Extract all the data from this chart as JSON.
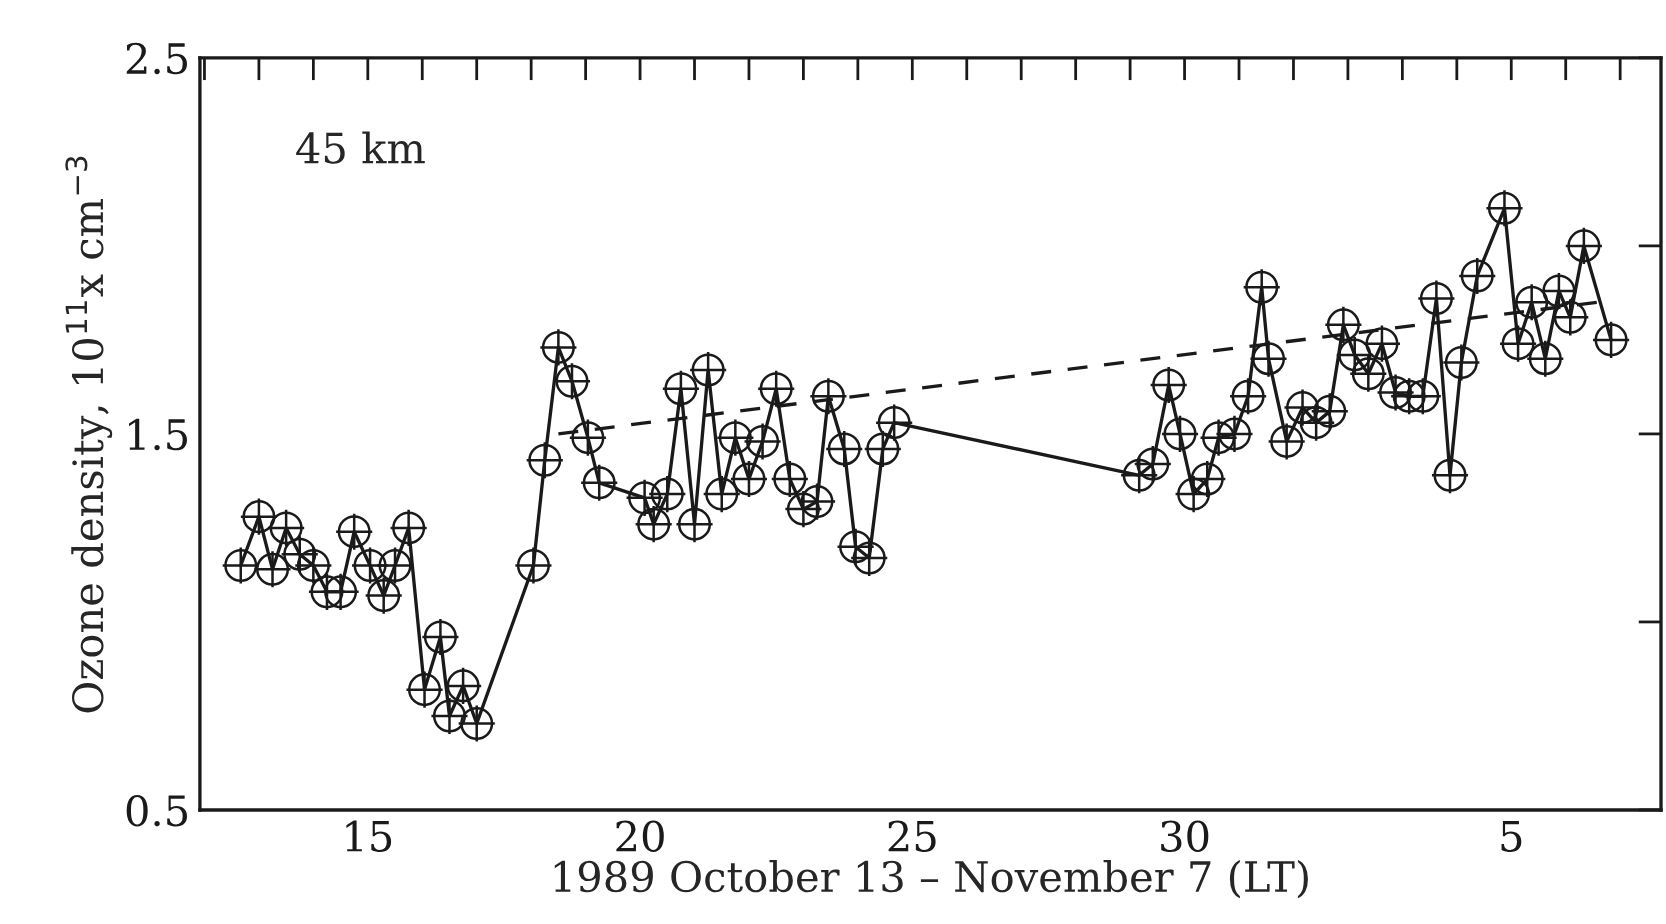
{
  "chart_data": {
    "type": "line",
    "xlabel": "1989 October 13 – November 7 (LT)",
    "ylabel": "Ozone density, 10$^{11}$x cm$^{−3}$",
    "annotations": [
      "45 km"
    ],
    "xlim": [
      "1989-10-11T22:00",
      "1989-11-07T18:00"
    ],
    "ylim": [
      0.5,
      2.5
    ],
    "xticks": [
      {
        "value": "1989-10-12",
        "label": null
      },
      {
        "value": "1989-10-13",
        "label": null
      },
      {
        "value": "1989-10-14",
        "label": null
      },
      {
        "value": "1989-10-15",
        "label": "15"
      },
      {
        "value": "1989-10-16",
        "label": null
      },
      {
        "value": "1989-10-17",
        "label": null
      },
      {
        "value": "1989-10-18",
        "label": null
      },
      {
        "value": "1989-10-19",
        "label": null
      },
      {
        "value": "1989-10-20",
        "label": "20"
      },
      {
        "value": "1989-10-21",
        "label": null
      },
      {
        "value": "1989-10-22",
        "label": null
      },
      {
        "value": "1989-10-23",
        "label": null
      },
      {
        "value": "1989-10-24",
        "label": null
      },
      {
        "value": "1989-10-25",
        "label": "25"
      },
      {
        "value": "1989-10-26",
        "label": null
      },
      {
        "value": "1989-10-27",
        "label": null
      },
      {
        "value": "1989-10-28",
        "label": null
      },
      {
        "value": "1989-10-29",
        "label": null
      },
      {
        "value": "1989-10-30",
        "label": "30"
      },
      {
        "value": "1989-10-31",
        "label": null
      },
      {
        "value": "1989-11-01",
        "label": null
      },
      {
        "value": "1989-11-02",
        "label": null
      },
      {
        "value": "1989-11-03",
        "label": null
      },
      {
        "value": "1989-11-04",
        "label": null
      },
      {
        "value": "1989-11-05",
        "label": "5"
      },
      {
        "value": "1989-11-06",
        "label": null
      },
      {
        "value": "1989-11-07",
        "label": null
      }
    ],
    "yticks": [
      0.5,
      {
        "value": 1.0,
        "label": null
      },
      1.5,
      {
        "value": 2.0,
        "label": null
      },
      2.5
    ],
    "grid": false,
    "legend": false,
    "series": [
      {
        "color": "#1a1a1a",
        "marker": "circle",
        "line_style": "solid",
        "x": [
          "1989-10-12T16:00",
          "1989-10-13T00:00",
          "1989-10-13T06:00",
          "1989-10-13T12:00",
          "1989-10-13T18:00",
          "1989-10-14T00:00",
          "1989-10-14T06:00",
          "1989-10-14T12:00",
          "1989-10-14T18:00",
          "1989-10-15T01:00",
          "1989-10-15T07:00",
          "1989-10-15T12:00",
          "1989-10-15T18:00",
          "1989-10-16T01:00",
          "1989-10-16T08:00",
          "1989-10-16T12:00",
          "1989-10-16T18:00",
          "1989-10-17T00:00",
          "1989-10-18T01:00",
          "1989-10-18T06:00",
          "1989-10-18T12:00",
          "1989-10-18T18:00",
          "1989-10-19T01:00",
          "1989-10-19T06:00",
          "1989-10-20T02:00",
          "1989-10-20T06:00",
          "1989-10-20T12:00",
          "1989-10-20T18:00",
          "1989-10-21T00:00",
          "1989-10-21T06:00",
          "1989-10-21T12:00",
          "1989-10-21T18:00",
          "1989-10-22T00:00",
          "1989-10-22T06:00",
          "1989-10-22T12:00",
          "1989-10-22T18:00",
          "1989-10-23T00:00",
          "1989-10-23T06:00",
          "1989-10-23T11:00",
          "1989-10-23T18:00",
          "1989-10-23T23:00",
          "1989-10-24T05:00",
          "1989-10-24T11:00",
          "1989-10-24T16:00",
          "1989-10-29T04:00",
          "1989-10-29T10:00",
          "1989-10-29T17:00",
          "1989-10-29T22:00",
          "1989-10-30T04:00",
          "1989-10-30T10:00",
          "1989-10-30T15:00",
          "1989-10-30T22:00",
          "1989-10-31T04:00",
          "1989-10-31T10:00",
          "1989-10-31T13:00",
          "1989-10-31T21:00",
          "1989-11-01T04:00",
          "1989-11-01T10:00",
          "1989-11-01T16:00",
          "1989-11-01T22:00",
          "1989-11-02T03:00",
          "1989-11-02T09:00",
          "1989-11-02T15:00",
          "1989-11-02T21:00",
          "1989-11-03T03:00",
          "1989-11-03T09:00",
          "1989-11-03T15:00",
          "1989-11-03T21:00",
          "1989-11-04T02:00",
          "1989-11-04T09:00",
          "1989-11-04T21:00",
          "1989-11-05T03:00",
          "1989-11-05T09:00",
          "1989-11-05T15:00",
          "1989-11-05T21:00",
          "1989-11-06T02:00",
          "1989-11-06T08:00",
          "1989-11-06T20:00"
        ],
        "values": [
          1.15,
          1.28,
          1.14,
          1.25,
          1.18,
          1.15,
          1.08,
          1.08,
          1.24,
          1.15,
          1.07,
          1.15,
          1.25,
          0.82,
          0.96,
          0.75,
          0.83,
          0.73,
          1.15,
          1.43,
          1.73,
          1.64,
          1.49,
          1.37,
          1.33,
          1.26,
          1.34,
          1.62,
          1.26,
          1.67,
          1.34,
          1.49,
          1.38,
          1.48,
          1.62,
          1.38,
          1.3,
          1.32,
          1.6,
          1.46,
          1.2,
          1.17,
          1.46,
          1.53,
          1.39,
          1.42,
          1.63,
          1.5,
          1.34,
          1.38,
          1.49,
          1.5,
          1.6,
          1.89,
          1.7,
          1.48,
          1.57,
          1.53,
          1.56,
          1.79,
          1.71,
          1.66,
          1.74,
          1.61,
          1.6,
          1.6,
          1.86,
          1.39,
          1.69,
          1.92,
          2.1,
          1.74,
          1.85,
          1.7,
          1.88,
          1.81,
          2.0,
          1.75
        ]
      },
      {
        "color": "#1a1a1a",
        "marker": "none",
        "line_style": "dashed",
        "x": [
          "1989-10-18T12:00",
          "1989-11-06T14:00"
        ],
        "values": [
          1.5,
          1.85
        ]
      }
    ]
  }
}
